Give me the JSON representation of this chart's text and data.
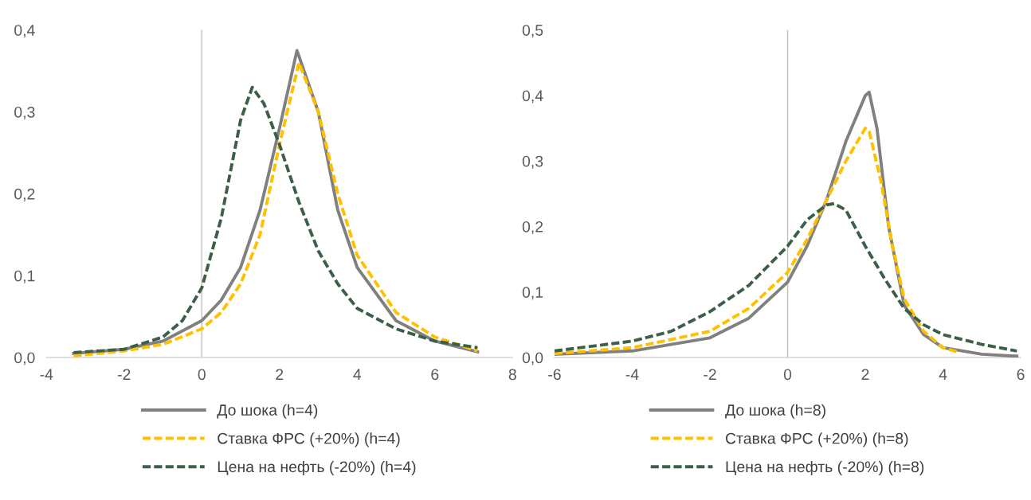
{
  "chart_data": [
    {
      "type": "line",
      "legend": "bottom",
      "grid": false,
      "xlim": [
        -4,
        8
      ],
      "xticks": [
        -4,
        -2,
        0,
        2,
        4,
        6,
        8
      ],
      "ylim": [
        0,
        0.4
      ],
      "yticks": [
        {
          "value": 0,
          "label": "0,0"
        },
        {
          "value": 0.1,
          "label": "0,1"
        },
        {
          "value": 0.2,
          "label": "0,2"
        },
        {
          "value": 0.3,
          "label": "0,3"
        },
        {
          "value": 0.4,
          "label": "0,4"
        }
      ],
      "ref_lines": [
        {
          "axis": "x",
          "value": 0,
          "color": "#bfbfbf"
        }
      ],
      "series": [
        {
          "name": "До шока (h=4)",
          "color": "#808080",
          "line_style": "solid",
          "x": [
            -3.3,
            -2,
            -1,
            0,
            0.5,
            1,
            1.5,
            2,
            2.45,
            3,
            3.5,
            4,
            5,
            6,
            7.1
          ],
          "values": [
            0.005,
            0.01,
            0.02,
            0.045,
            0.07,
            0.11,
            0.18,
            0.28,
            0.375,
            0.3,
            0.18,
            0.11,
            0.045,
            0.02,
            0.007
          ]
        },
        {
          "name": "Ставка ФРС (+20%) (h=4)",
          "color": "#ffc000",
          "line_style": "dashed",
          "x": [
            -3.3,
            -2,
            -1,
            0,
            0.5,
            1,
            1.5,
            2,
            2.5,
            3,
            3.5,
            4,
            5,
            6,
            7.1
          ],
          "values": [
            0.002,
            0.008,
            0.016,
            0.035,
            0.055,
            0.09,
            0.15,
            0.26,
            0.36,
            0.3,
            0.2,
            0.125,
            0.055,
            0.025,
            0.008
          ]
        },
        {
          "name": "Цена на нефть (-20%) (h=4)",
          "color": "#3c5f47",
          "line_style": "dashed",
          "x": [
            -3.3,
            -2,
            -1,
            -0.5,
            0,
            0.5,
            1,
            1.3,
            1.6,
            2,
            2.5,
            3,
            3.5,
            4,
            5,
            6,
            7.1
          ],
          "values": [
            0.006,
            0.01,
            0.025,
            0.045,
            0.085,
            0.17,
            0.29,
            0.33,
            0.31,
            0.26,
            0.19,
            0.13,
            0.09,
            0.06,
            0.035,
            0.02,
            0.012
          ]
        }
      ]
    },
    {
      "type": "line",
      "legend": "bottom",
      "grid": false,
      "xlim": [
        -6,
        6
      ],
      "xticks": [
        -6,
        -4,
        -2,
        0,
        2,
        4,
        6
      ],
      "ylim": [
        0,
        0.5
      ],
      "yticks": [
        {
          "value": 0,
          "label": "0,0"
        },
        {
          "value": 0.1,
          "label": "0,1"
        },
        {
          "value": 0.2,
          "label": "0,2"
        },
        {
          "value": 0.3,
          "label": "0,3"
        },
        {
          "value": 0.4,
          "label": "0,4"
        },
        {
          "value": 0.5,
          "label": "0,5"
        }
      ],
      "ref_lines": [
        {
          "axis": "x",
          "value": 0,
          "color": "#bfbfbf"
        }
      ],
      "series": [
        {
          "name": "До шока (h=8)",
          "color": "#808080",
          "line_style": "solid",
          "x": [
            -6,
            -4,
            -2,
            -1,
            0,
            0.5,
            1,
            1.5,
            2,
            2.1,
            2.3,
            2.6,
            3,
            3.5,
            4,
            5,
            5.9
          ],
          "values": [
            0.005,
            0.01,
            0.03,
            0.06,
            0.115,
            0.17,
            0.24,
            0.33,
            0.4,
            0.405,
            0.35,
            0.2,
            0.08,
            0.035,
            0.015,
            0.005,
            0.002
          ]
        },
        {
          "name": "Ставка ФРС (+20%) (h=8)",
          "color": "#ffc000",
          "line_style": "dashed",
          "x": [
            -6,
            -4,
            -2,
            -1,
            0,
            0.5,
            1,
            1.5,
            2,
            2.1,
            2.4,
            2.7,
            3,
            3.5,
            4,
            4.4
          ],
          "values": [
            0.006,
            0.015,
            0.04,
            0.075,
            0.13,
            0.18,
            0.24,
            0.3,
            0.35,
            0.345,
            0.27,
            0.17,
            0.09,
            0.04,
            0.015,
            0.008
          ]
        },
        {
          "name": "Цена на нефть (-20%) (h=8)",
          "color": "#3c5f47",
          "line_style": "dashed",
          "x": [
            -6,
            -4,
            -3,
            -2,
            -1,
            0,
            0.5,
            1,
            1.2,
            1.5,
            2,
            2.5,
            3,
            3.5,
            4,
            5,
            5.9
          ],
          "values": [
            0.01,
            0.025,
            0.04,
            0.07,
            0.11,
            0.17,
            0.21,
            0.233,
            0.235,
            0.225,
            0.17,
            0.12,
            0.075,
            0.05,
            0.035,
            0.02,
            0.01
          ]
        }
      ]
    }
  ]
}
